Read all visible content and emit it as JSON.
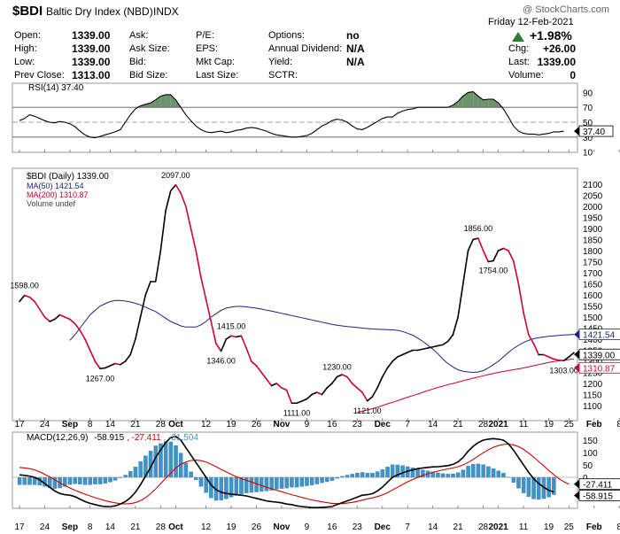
{
  "header": {
    "symbol": "$BDI",
    "name": "Baltic Dry Index (NBD)",
    "exchange": "INDX",
    "watermark": "@ StockCharts.com",
    "date": "Friday  12-Feb-2021"
  },
  "quote": {
    "open_label": "Open:",
    "open": "1339.00",
    "high_label": "High:",
    "high": "1339.00",
    "low_label": "Low:",
    "low": "1339.00",
    "prev_label": "Prev Close:",
    "prev": "1313.00",
    "ask_label": "Ask:",
    "asksize_label": "Ask Size:",
    "bid_label": "Bid:",
    "bidsize_label": "Bid Size:",
    "pe_label": "P/E:",
    "eps_label": "EPS:",
    "mktcap_label": "Mkt Cap:",
    "lastsize_label": "Last Size:",
    "options_label": "Options:",
    "options": "no",
    "div_label": "Annual Dividend:",
    "div": "N/A",
    "yield_label": "Yield:",
    "yield": "N/A",
    "sctr_label": "SCTR:",
    "chg_pct": "+1.98%",
    "chg_label": "Chg:",
    "chg": "+26.00",
    "last_label": "Last:",
    "last": "1339.00",
    "volume_label": "Volume:",
    "volume": "0"
  },
  "colors": {
    "price": "#000000",
    "ma50": "#1a237e",
    "ma200": "#cc0033",
    "rsi_up": "#5b8a5b",
    "rsi_down": "#8a5050",
    "hist": "#3f93c8",
    "macd": "#000000",
    "signal": "#cc0000",
    "up": "#2e7d32"
  },
  "x_axis": {
    "ticks": [
      {
        "label": "17",
        "i": 0
      },
      {
        "label": "24",
        "i": 5
      },
      {
        "label": "Sep",
        "i": 10,
        "bold": true
      },
      {
        "label": "8",
        "i": 14
      },
      {
        "label": "14",
        "i": 18
      },
      {
        "label": "21",
        "i": 23
      },
      {
        "label": "28",
        "i": 28
      },
      {
        "label": "Oct",
        "i": 31,
        "bold": true
      },
      {
        "label": "12",
        "i": 37
      },
      {
        "label": "19",
        "i": 42
      },
      {
        "label": "26",
        "i": 47
      },
      {
        "label": "Nov",
        "i": 52,
        "bold": true
      },
      {
        "label": "9",
        "i": 57
      },
      {
        "label": "16",
        "i": 62
      },
      {
        "label": "23",
        "i": 67
      },
      {
        "label": "Dec",
        "i": 72,
        "bold": true
      },
      {
        "label": "7",
        "i": 77
      },
      {
        "label": "14",
        "i": 82
      },
      {
        "label": "21",
        "i": 87
      },
      {
        "label": "28",
        "i": 92
      },
      {
        "label": "2021",
        "i": 95,
        "bold": true
      },
      {
        "label": "11",
        "i": 100
      },
      {
        "label": "19",
        "i": 105
      },
      {
        "label": "25",
        "i": 109
      },
      {
        "label": "Feb",
        "i": 114,
        "bold": true
      },
      {
        "label": "8",
        "i": 119
      }
    ]
  },
  "chart_data": [
    {
      "type": "line",
      "panel": "RSI",
      "legend": "RSI(14) 37.40",
      "last_label": "37.40",
      "ylim": [
        0,
        100
      ],
      "yticks": [
        10,
        30,
        50,
        70,
        90
      ],
      "levels": [
        30,
        50,
        70
      ],
      "values": [
        52,
        55,
        60,
        58,
        55,
        52,
        50,
        49,
        51,
        50,
        48,
        44,
        38,
        33,
        30,
        29,
        31,
        33,
        35,
        37,
        40,
        50,
        60,
        68,
        72,
        74,
        76,
        80,
        85,
        87,
        87,
        80,
        70,
        60,
        52,
        45,
        40,
        37,
        36,
        37,
        38,
        36,
        37,
        39,
        40,
        42,
        43,
        42,
        40,
        38,
        35,
        33,
        32,
        31,
        30,
        30,
        31,
        32,
        35,
        40,
        45,
        48,
        52,
        54,
        53,
        50,
        45,
        41,
        40,
        43,
        47,
        51,
        55,
        57,
        57,
        62,
        65,
        67,
        68,
        70,
        70,
        70,
        70,
        70,
        70,
        70,
        73,
        78,
        85,
        90,
        91,
        85,
        80,
        81,
        81,
        76,
        68,
        57,
        45,
        38,
        35,
        34,
        34,
        33,
        34,
        35,
        37,
        37,
        38
      ]
    },
    {
      "type": "line",
      "panel": "price",
      "ylim": [
        1050,
        2150
      ],
      "yticks": [
        1100,
        1150,
        1200,
        1250,
        1300,
        1350,
        1400,
        1450,
        1500,
        1550,
        1600,
        1650,
        1700,
        1750,
        1800,
        1850,
        1900,
        1950,
        2000,
        2050,
        2100
      ],
      "legend_price": "$BDI (Daily) 1339.00",
      "legend_ma50": "MA(50) 1421.54",
      "legend_ma200": "MA(200) 1310.87",
      "legend_volume": "Volume undef",
      "last_price_label": "1339.00",
      "ma50_label": "1421.54",
      "ma200_label": "1310.87",
      "price": [
        1570,
        1598,
        1590,
        1570,
        1535,
        1500,
        1480,
        1490,
        1510,
        1500,
        1490,
        1470,
        1440,
        1400,
        1350,
        1300,
        1267,
        1270,
        1280,
        1290,
        1285,
        1300,
        1330,
        1400,
        1500,
        1600,
        1660,
        1660,
        1800,
        1980,
        2070,
        2097,
        2060,
        2000,
        1900,
        1800,
        1680,
        1580,
        1480,
        1380,
        1346,
        1400,
        1415,
        1410,
        1415,
        1360,
        1300,
        1280,
        1250,
        1220,
        1190,
        1200,
        1180,
        1170,
        1111,
        1111,
        1120,
        1130,
        1150,
        1160,
        1150,
        1180,
        1200,
        1230,
        1240,
        1230,
        1200,
        1180,
        1160,
        1121,
        1140,
        1180,
        1230,
        1270,
        1300,
        1320,
        1330,
        1340,
        1350,
        1350,
        1355,
        1360,
        1365,
        1370,
        1375,
        1390,
        1420,
        1500,
        1650,
        1800,
        1850,
        1856,
        1800,
        1750,
        1754,
        1800,
        1810,
        1800,
        1754,
        1650,
        1520,
        1420,
        1380,
        1330,
        1330,
        1320,
        1310,
        1305,
        1303,
        1320,
        1339
      ],
      "ma50": [
        1395,
        1420,
        1450,
        1480,
        1510,
        1530,
        1550,
        1560,
        1570,
        1575,
        1575,
        1572,
        1568,
        1562,
        1555,
        1545,
        1535,
        1525,
        1510,
        1495,
        1480,
        1470,
        1460,
        1455,
        1455,
        1455,
        1465,
        1480,
        1500,
        1515,
        1530,
        1540,
        1545,
        1548,
        1548,
        1546,
        1543,
        1540,
        1536,
        1531,
        1527,
        1522,
        1517,
        1512,
        1507,
        1502,
        1497,
        1492,
        1487,
        1482,
        1477,
        1472,
        1467,
        1463,
        1460,
        1457,
        1455,
        1453,
        1450,
        1448,
        1446,
        1445,
        1444,
        1443,
        1442,
        1440,
        1435,
        1427,
        1418,
        1405,
        1390,
        1373,
        1355,
        1335,
        1310,
        1290,
        1275,
        1262,
        1255,
        1252,
        1250,
        1252,
        1258,
        1270,
        1285,
        1300,
        1320,
        1340,
        1358,
        1372,
        1385,
        1395,
        1402,
        1407,
        1410,
        1413,
        1415,
        1417,
        1419,
        1420,
        1421.54
      ],
      "ma200": [
        1070,
        1075,
        1080,
        1086,
        1093,
        1100,
        1108,
        1115,
        1122,
        1130,
        1138,
        1145,
        1152,
        1160,
        1168,
        1175,
        1182,
        1188,
        1195,
        1200,
        1206,
        1212,
        1218,
        1224,
        1229,
        1235,
        1240,
        1245,
        1250,
        1254,
        1258,
        1262,
        1266,
        1270,
        1275,
        1280,
        1285,
        1290,
        1295,
        1299,
        1302,
        1305,
        1308,
        1310.87
      ],
      "annotations": [
        {
          "label": "1598.00",
          "i": 1,
          "value": 1598,
          "pos": "above"
        },
        {
          "label": "1267.00",
          "i": 16,
          "value": 1267,
          "pos": "below"
        },
        {
          "label": "2097.00",
          "i": 31,
          "value": 2097,
          "pos": "above"
        },
        {
          "label": "1346.00",
          "i": 40,
          "value": 1346,
          "pos": "below"
        },
        {
          "label": "1415.00",
          "i": 42,
          "value": 1415,
          "pos": "above"
        },
        {
          "label": "1111.00",
          "i": 55,
          "value": 1111,
          "pos": "below"
        },
        {
          "label": "1230.00",
          "i": 63,
          "value": 1230,
          "pos": "above"
        },
        {
          "label": "1121.00",
          "i": 69,
          "value": 1121,
          "pos": "below"
        },
        {
          "label": "1856.00",
          "i": 91,
          "value": 1856,
          "pos": "above"
        },
        {
          "label": "1754.00",
          "i": 94,
          "value": 1754,
          "pos": "below"
        },
        {
          "label": "1303.00",
          "i": 108,
          "value": 1303,
          "pos": "below"
        }
      ]
    },
    {
      "type": "line",
      "panel": "MACD",
      "legend_title": "MACD(12,26,9)",
      "legend_macd": "-58.915",
      "legend_signal": ", -27.411",
      "legend_hist": ", -31.504",
      "signal_label": "-27.411",
      "macd_label": "-58.915",
      "ylim": [
        -110,
        180
      ],
      "yticks": [
        -50,
        0,
        50,
        100,
        150
      ],
      "macd": [
        10,
        8,
        5,
        0,
        -10,
        -25,
        -40,
        -55,
        -65,
        -70,
        -72,
        -78,
        -88,
        -98,
        -105,
        -110,
        -115,
        -118,
        -118,
        -115,
        -108,
        -98,
        -82,
        -60,
        -30,
        5,
        40,
        80,
        110,
        140,
        160,
        165,
        150,
        120,
        90,
        60,
        30,
        0,
        -30,
        -50,
        -60,
        -65,
        -68,
        -70,
        -72,
        -75,
        -80,
        -85,
        -90,
        -95,
        -98,
        -100,
        -103,
        -108,
        -110,
        -115,
        -118,
        -120,
        -122,
        -122,
        -121,
        -120,
        -118,
        -110,
        -102,
        -95,
        -88,
        -80,
        -72,
        -70,
        -66,
        -55,
        -40,
        -20,
        0,
        10,
        18,
        25,
        30,
        35,
        38,
        40,
        42,
        43,
        45,
        47,
        52,
        62,
        80,
        105,
        125,
        140,
        150,
        154,
        156,
        154,
        150,
        135,
        110,
        80,
        50,
        20,
        -5,
        -25,
        -40,
        -52,
        -58.915
      ],
      "signal": [
        40,
        38,
        35,
        30,
        22,
        12,
        2,
        -10,
        -22,
        -33,
        -43,
        -52,
        -60,
        -68,
        -75,
        -82,
        -88,
        -94,
        -99,
        -103,
        -106,
        -107,
        -106,
        -102,
        -94,
        -82,
        -66,
        -47,
        -26,
        -4,
        17,
        37,
        52,
        62,
        68,
        70,
        67,
        62,
        53,
        43,
        32,
        22,
        12,
        3,
        -5,
        -12,
        -19,
        -26,
        -33,
        -40,
        -46,
        -52,
        -58,
        -64,
        -70,
        -75,
        -81,
        -86,
        -91,
        -95,
        -99,
        -102,
        -105,
        -106,
        -106,
        -104,
        -101,
        -97,
        -92,
        -87,
        -83,
        -78,
        -71,
        -62,
        -51,
        -40,
        -29,
        -18,
        -9,
        0,
        8,
        14,
        20,
        25,
        30,
        34,
        38,
        43,
        50,
        60,
        72,
        86,
        99,
        111,
        121,
        128,
        133,
        134,
        131,
        124,
        113,
        98,
        82,
        64,
        46,
        28,
        11,
        -5,
        -18,
        -27.411
      ]
    }
  ]
}
